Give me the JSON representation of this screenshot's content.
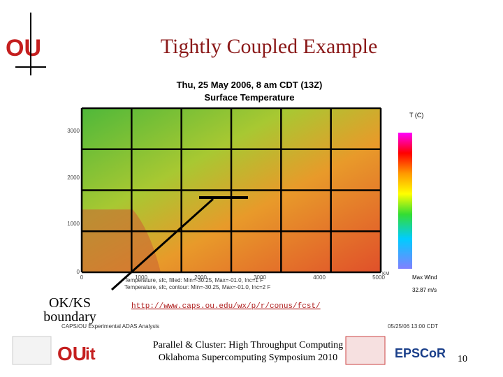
{
  "header": {
    "title": "Tightly Coupled Example"
  },
  "map": {
    "title_line1": "Thu, 25 May 2006, 8 am CDT (13Z)",
    "title_line2": "Surface Temperature",
    "yticks": [
      3000,
      2000,
      1000,
      0
    ],
    "xticks": [
      0,
      1000,
      2000,
      3000,
      4000,
      5000
    ],
    "x_unit": "KM",
    "colorbar_title": "T (C)",
    "wind_title": "Max Wind",
    "wind_value": "32.87 m/s",
    "caption_line1": "Temperature, sfc, filled: Min=-30.25, Max=-01.0, Inc=1 F",
    "caption_line2": "Temperature, sfc, contour: Min=-30.25, Max=-01.0, Inc=2 F",
    "source": "CAPS/OU Experimental ADAS Analysis",
    "timestamp": "05/25/06 13:00 CDT"
  },
  "annotation": {
    "label_line1": "OK/KS",
    "label_line2": "boundary",
    "url": "http://www.caps.ou.edu/wx/p/r/conus/fcst/"
  },
  "footer": {
    "line1": "Parallel & Cluster: High Throughput Computing",
    "line2": "Oklahoma Supercomputing Symposium 2010",
    "page": "10"
  }
}
